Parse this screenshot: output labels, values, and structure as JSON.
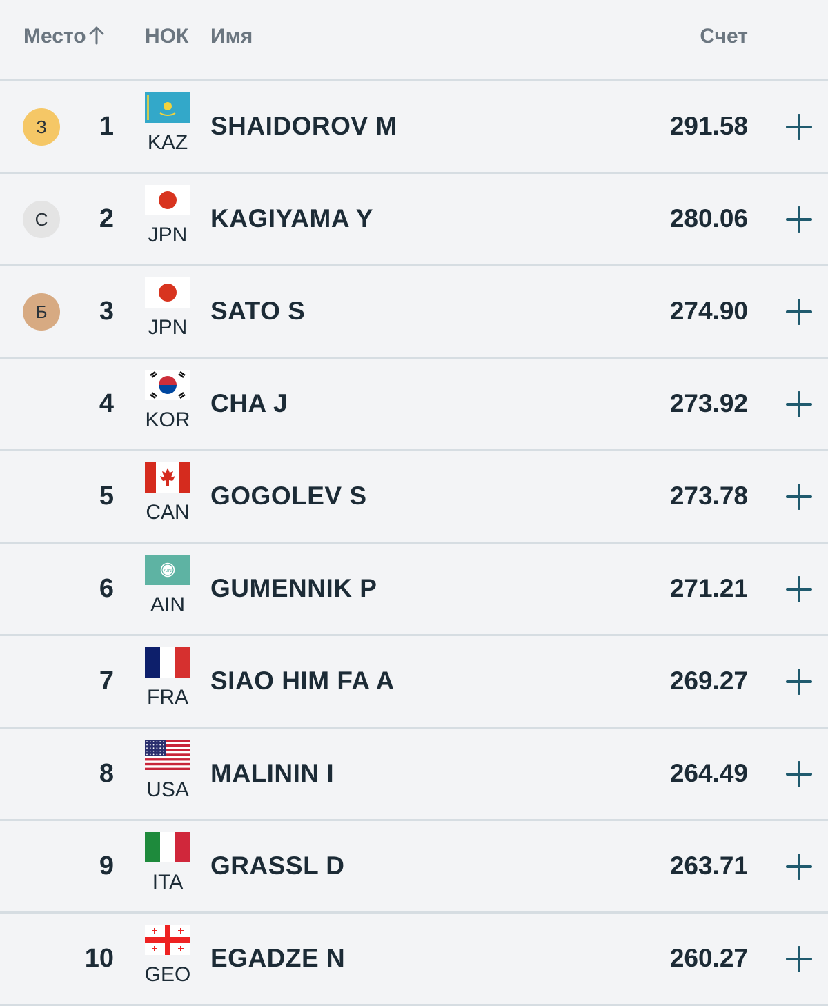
{
  "header": {
    "place": "Место",
    "noc": "НОК",
    "name": "Имя",
    "score": "Счет"
  },
  "colors": {
    "gold": "#f5c766",
    "silver": "#e4e4e4",
    "bronze": "#d7aa82",
    "accent": "#1f5a6e"
  },
  "rows": [
    {
      "medal": "З",
      "medal_type": "gold",
      "rank": "1",
      "noc": "KAZ",
      "name": "SHAIDOROV M",
      "score": "291.58",
      "flag": "kaz-flag-icon"
    },
    {
      "medal": "С",
      "medal_type": "silver",
      "rank": "2",
      "noc": "JPN",
      "name": "KAGIYAMA Y",
      "score": "280.06",
      "flag": "jpn-flag-icon"
    },
    {
      "medal": "Б",
      "medal_type": "bronze",
      "rank": "3",
      "noc": "JPN",
      "name": "SATO S",
      "score": "274.90",
      "flag": "jpn-flag-icon"
    },
    {
      "medal": "",
      "medal_type": "",
      "rank": "4",
      "noc": "KOR",
      "name": "CHA J",
      "score": "273.92",
      "flag": "kor-flag-icon"
    },
    {
      "medal": "",
      "medal_type": "",
      "rank": "5",
      "noc": "CAN",
      "name": "GOGOLEV S",
      "score": "273.78",
      "flag": "can-flag-icon"
    },
    {
      "medal": "",
      "medal_type": "",
      "rank": "6",
      "noc": "AIN",
      "name": "GUMENNIK P",
      "score": "271.21",
      "flag": "ain-flag-icon",
      "flag_text": "AIN"
    },
    {
      "medal": "",
      "medal_type": "",
      "rank": "7",
      "noc": "FRA",
      "name": "SIAO HIM FA A",
      "score": "269.27",
      "flag": "fra-flag-icon"
    },
    {
      "medal": "",
      "medal_type": "",
      "rank": "8",
      "noc": "USA",
      "name": "MALININ I",
      "score": "264.49",
      "flag": "usa-flag-icon"
    },
    {
      "medal": "",
      "medal_type": "",
      "rank": "9",
      "noc": "ITA",
      "name": "GRASSL D",
      "score": "263.71",
      "flag": "ita-flag-icon"
    },
    {
      "medal": "",
      "medal_type": "",
      "rank": "10",
      "noc": "GEO",
      "name": "EGADZE N",
      "score": "260.27",
      "flag": "geo-flag-icon"
    }
  ]
}
